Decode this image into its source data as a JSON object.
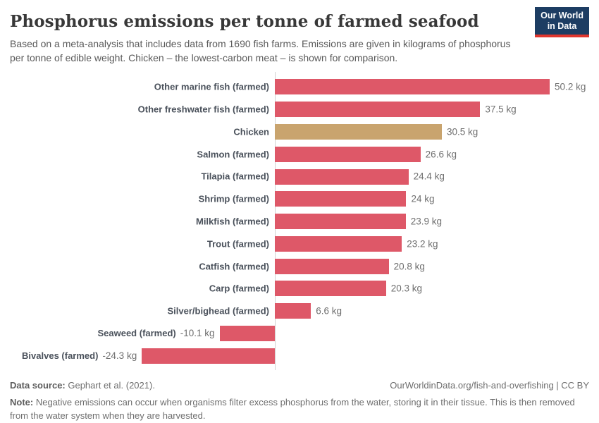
{
  "header": {
    "title": "Phosphorus emissions per tonne of farmed seafood",
    "subtitle": "Based on a meta-analysis that includes data from 1690 fish farms. Emissions are given in kilograms of phosphorus per tonne of edible weight. Chicken – the lowest-carbon meat – is shown for comparison.",
    "logo": {
      "line1": "Our World",
      "line2": "in Data",
      "bg_color": "#1d3d63",
      "accent_color": "#e0362e"
    }
  },
  "chart_data": {
    "type": "bar",
    "orientation": "horizontal",
    "title": "Phosphorus emissions per tonne of farmed seafood",
    "unit": "kg",
    "xlim": [
      -25.5,
      51
    ],
    "grid": false,
    "axis_color": "#d0d0d0",
    "categories": [
      "Other marine fish (farmed)",
      "Other freshwater fish (farmed)",
      "Chicken",
      "Salmon (farmed)",
      "Tilapia (farmed)",
      "Shrimp (farmed)",
      "Milkfish (farmed)",
      "Trout (farmed)",
      "Catfish (farmed)",
      "Carp (farmed)",
      "Silver/bighead (farmed)",
      "Seaweed (farmed)",
      "Bivalves (farmed)"
    ],
    "values": [
      50.2,
      37.5,
      30.5,
      26.6,
      24.4,
      24,
      23.9,
      23.2,
      20.8,
      20.3,
      6.6,
      -10.1,
      -24.3
    ],
    "value_labels": [
      "50.2 kg",
      "37.5 kg",
      "30.5 kg",
      "26.6 kg",
      "24.4 kg",
      "24 kg",
      "23.9 kg",
      "23.2 kg",
      "20.8 kg",
      "20.3 kg",
      "6.6 kg",
      "-10.1 kg",
      "-24.3 kg"
    ],
    "colors": [
      "#de5868",
      "#de5868",
      "#c9a46e",
      "#de5868",
      "#de5868",
      "#de5868",
      "#de5868",
      "#de5868",
      "#de5868",
      "#de5868",
      "#de5868",
      "#de5868",
      "#de5868"
    ],
    "highlight_note": "Chicken bar shown in tan for comparison; all seafood bars in red"
  },
  "footer": {
    "source_label": "Data source:",
    "source_value": " Gephart et al. (2021).",
    "citation": "OurWorldinData.org/fish-and-overfishing | CC BY",
    "note_label": "Note:",
    "note_text": " Negative emissions can occur when organisms filter excess phosphorus from the water, storing it in their tissue. This is then removed from the water system when they are harvested."
  }
}
